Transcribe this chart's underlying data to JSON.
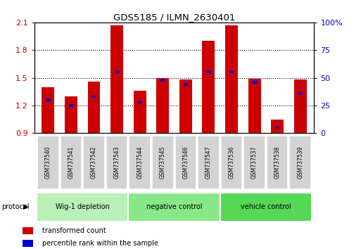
{
  "title": "GDS5185 / ILMN_2630401",
  "samples": [
    "GSM737540",
    "GSM737541",
    "GSM737542",
    "GSM737543",
    "GSM737544",
    "GSM737545",
    "GSM737546",
    "GSM737547",
    "GSM737536",
    "GSM737537",
    "GSM737538",
    "GSM737539"
  ],
  "transformed_counts": [
    1.4,
    1.3,
    1.46,
    2.07,
    1.36,
    1.5,
    1.48,
    1.9,
    2.07,
    1.49,
    1.05,
    1.48
  ],
  "percentile_ranks": [
    30,
    25,
    33,
    55,
    28,
    48,
    44,
    55,
    55,
    46,
    5,
    36
  ],
  "ylim_left": [
    0.9,
    2.1
  ],
  "ylim_right": [
    0,
    100
  ],
  "yticks_left": [
    0.9,
    1.2,
    1.5,
    1.8,
    2.1
  ],
  "yticks_right": [
    0,
    25,
    50,
    75,
    100
  ],
  "bar_color": "#cc0000",
  "percentile_color": "#0000cc",
  "bar_width": 0.55,
  "pct_bar_width": 0.2,
  "groups": [
    {
      "label": "Wig-1 depletion",
      "indices": [
        0,
        1,
        2,
        3
      ],
      "color": "#b8f0b8"
    },
    {
      "label": "negative control",
      "indices": [
        4,
        5,
        6,
        7
      ],
      "color": "#88e888"
    },
    {
      "label": "vehicle control",
      "indices": [
        8,
        9,
        10,
        11
      ],
      "color": "#55d855"
    }
  ],
  "legend_red": "transformed count",
  "legend_blue": "percentile rank within the sample",
  "protocol_label": "protocol",
  "sample_box_color": "#d3d3d3",
  "sample_box_edge": "#ffffff",
  "plot_bg": "#ffffff",
  "group_row_bg": "#cccccc"
}
